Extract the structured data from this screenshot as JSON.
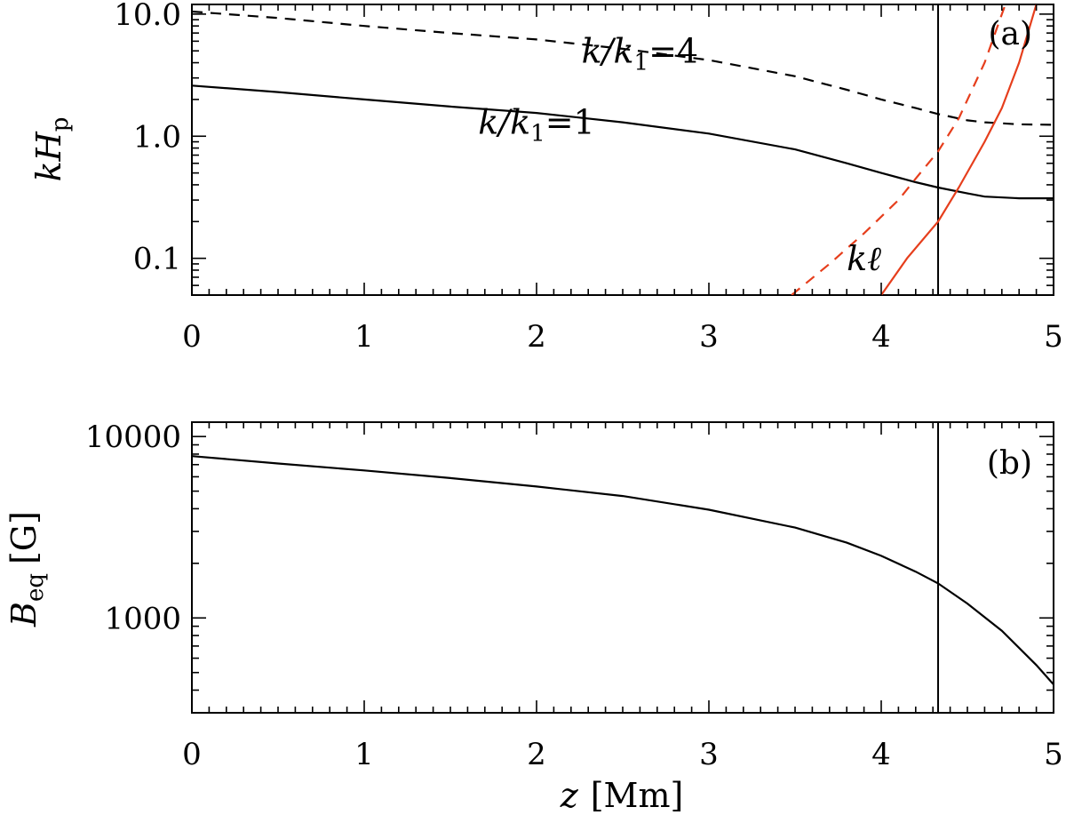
{
  "chart_data": [
    {
      "type": "line",
      "panel_label": "(a)",
      "xlim": [
        0,
        5
      ],
      "ylim": [
        0.05,
        12
      ],
      "yscale": "log",
      "x_ticks": [
        "0",
        "1",
        "2",
        "3",
        "4",
        "5"
      ],
      "y_ticks": [
        {
          "value": 0.1,
          "label": "0.1"
        },
        {
          "value": 1.0,
          "label": "1.0"
        },
        {
          "value": 10.0,
          "label": "10.0"
        }
      ],
      "ylabel_main": "kH",
      "ylabel_sub": "p",
      "vline_x": 4.33,
      "annotations": [
        {
          "text_main": "k/k",
          "text_sub": "1",
          "text_tail": "=4",
          "x": 2.6,
          "y": 4.0
        },
        {
          "text_main": "k/k",
          "text_sub": "1",
          "text_tail": "=1",
          "x": 2.0,
          "y": 1.05
        },
        {
          "text": "kℓ",
          "x": 3.9,
          "y": 0.08,
          "color": "#e63e1c"
        }
      ],
      "series": [
        {
          "style": "solid",
          "color": "#000000",
          "x": [
            0,
            0.5,
            1.0,
            1.5,
            2.0,
            2.5,
            3.0,
            3.5,
            3.8,
            4.0,
            4.2,
            4.33,
            4.5,
            4.6,
            4.8,
            5.0
          ],
          "y": [
            2.6,
            2.3,
            2.0,
            1.75,
            1.55,
            1.3,
            1.05,
            0.78,
            0.6,
            0.5,
            0.42,
            0.38,
            0.34,
            0.32,
            0.31,
            0.31
          ]
        },
        {
          "style": "dashed",
          "color": "#000000",
          "x": [
            0,
            0.5,
            1.0,
            1.5,
            2.0,
            2.5,
            3.0,
            3.5,
            3.8,
            4.0,
            4.2,
            4.33,
            4.5,
            4.6,
            4.8,
            5.0
          ],
          "y": [
            10.5,
            9.3,
            8.0,
            7.0,
            6.2,
            5.2,
            4.2,
            3.1,
            2.4,
            2.0,
            1.7,
            1.52,
            1.35,
            1.3,
            1.25,
            1.24
          ]
        },
        {
          "style": "dashed",
          "color": "#e63e1c",
          "x": [
            3.48,
            3.7,
            3.9,
            4.1,
            4.2,
            4.33,
            4.45,
            4.6,
            4.72
          ],
          "y": [
            0.05,
            0.09,
            0.16,
            0.3,
            0.45,
            0.75,
            1.4,
            4.0,
            12.0
          ]
        },
        {
          "style": "solid",
          "color": "#e63e1c",
          "x": [
            4.0,
            4.15,
            4.33,
            4.45,
            4.6,
            4.7,
            4.8,
            4.9
          ],
          "y": [
            0.05,
            0.1,
            0.2,
            0.38,
            0.9,
            1.7,
            4.0,
            12.0
          ]
        }
      ]
    },
    {
      "type": "line",
      "panel_label": "(b)",
      "xlim": [
        0,
        5
      ],
      "ylim": [
        300,
        12000
      ],
      "yscale": "log",
      "x_ticks": [
        "0",
        "1",
        "2",
        "3",
        "4",
        "5"
      ],
      "y_ticks": [
        {
          "value": 1000,
          "label": "1000"
        },
        {
          "value": 10000,
          "label": "10000"
        }
      ],
      "ylabel_main": "B",
      "ylabel_sub": "eq",
      "ylabel_tail": "[G]",
      "xlabel_main": "z",
      "xlabel_tail": "[Mm]",
      "vline_x": 4.33,
      "series": [
        {
          "style": "solid",
          "color": "#000000",
          "x": [
            0,
            0.5,
            1.0,
            1.5,
            2.0,
            2.5,
            3.0,
            3.5,
            3.8,
            4.0,
            4.2,
            4.33,
            4.5,
            4.7,
            4.9,
            5.0
          ],
          "y": [
            7800,
            7100,
            6500,
            5900,
            5300,
            4700,
            3950,
            3150,
            2600,
            2200,
            1800,
            1550,
            1200,
            850,
            550,
            430
          ]
        }
      ]
    }
  ]
}
